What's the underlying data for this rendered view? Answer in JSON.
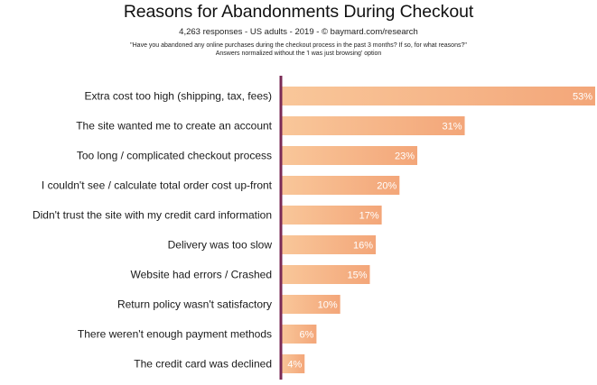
{
  "chart_data": {
    "type": "bar",
    "orientation": "horizontal",
    "title": "Reasons for Abandonments During Checkout",
    "subtitle": "4,263 responses - US adults - 2019 - © baymard.com/research",
    "notes": [
      "\"Have you abandoned any online purchases during the checkout process in the past 3 months? If so, for what reasons?\"",
      "Answers normalized without the 'I was just browsing' option"
    ],
    "categories": [
      "Extra cost too high (shipping, tax, fees)",
      "The site wanted me to create an account",
      "Too long / complicated checkout process",
      "I couldn't see / calculate total order cost up-front",
      "Didn't trust the site with my credit card information",
      "Delivery was too slow",
      "Website had errors / Crashed",
      "Return policy wasn't satisfactory",
      "There weren't enough payment methods",
      "The credit card was declined"
    ],
    "values": [
      53,
      31,
      23,
      20,
      17,
      16,
      15,
      10,
      6,
      4
    ],
    "value_labels": [
      "53%",
      "31%",
      "23%",
      "20%",
      "17%",
      "16%",
      "15%",
      "10%",
      "6%",
      "4%"
    ],
    "xlim": [
      0,
      53
    ],
    "unit": "%",
    "colors": {
      "bar_light": "#f9c79a",
      "bar_dark": "#f3a679",
      "axis": "#7a2a55",
      "label_text": "#ffffff"
    }
  }
}
